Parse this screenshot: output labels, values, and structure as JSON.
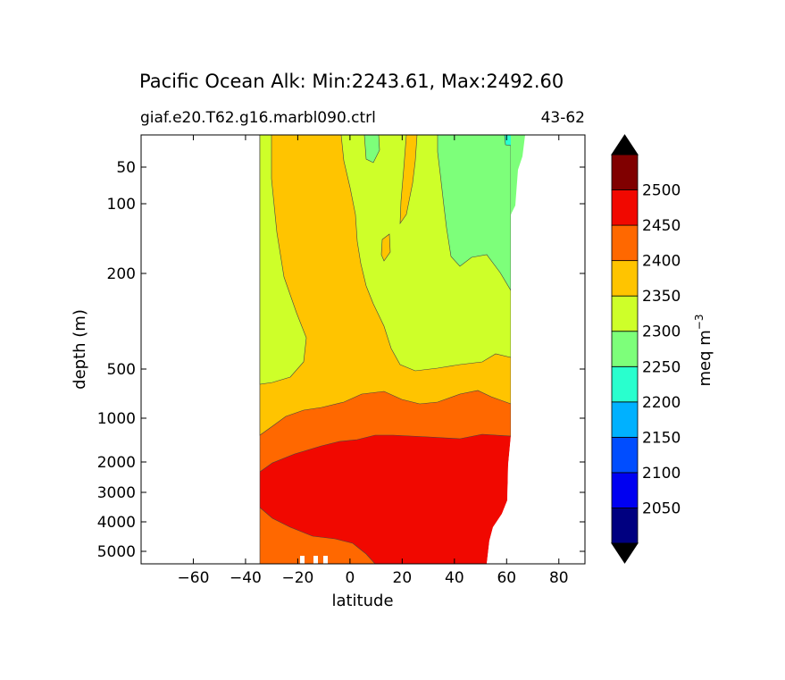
{
  "chart_data": {
    "type": "filled-contour",
    "title": "Pacific Ocean Alk: Min:2243.61, Max:2492.60",
    "subtitle_left": "giaf.e20.T62.g16.marbl090.ctrl",
    "subtitle_right": "43-62",
    "xlabel": "latitude",
    "ylabel": "depth (m)",
    "xlim": [
      -80,
      90
    ],
    "x_ticks": [
      -60,
      -40,
      -20,
      0,
      20,
      40,
      60,
      80
    ],
    "x_tick_labels": [
      "−60",
      "−40",
      "−20",
      "0",
      "20",
      "40",
      "60",
      "80"
    ],
    "y_scale": "custom-depth",
    "y_ticks": [
      50,
      100,
      200,
      500,
      1000,
      2000,
      3000,
      4000,
      5000
    ],
    "y_tick_labels": [
      "50",
      "100",
      "200",
      "500",
      "1000",
      "2000",
      "3000",
      "4000",
      "5000"
    ],
    "colorbar": {
      "label_base": "meq m",
      "label_exp": "−3",
      "extend": "both",
      "boundaries": [
        2000,
        2050,
        2100,
        2150,
        2200,
        2250,
        2300,
        2350,
        2400,
        2450,
        2500,
        2550
      ],
      "tick_values": [
        2050,
        2100,
        2150,
        2200,
        2250,
        2300,
        2350,
        2400,
        2450,
        2500
      ],
      "tick_labels": [
        "2050",
        "2100",
        "2150",
        "2200",
        "2250",
        "2300",
        "2350",
        "2400",
        "2450",
        "2500"
      ],
      "colors": [
        "#000080",
        "#0000f1",
        "#004dff",
        "#00b1ff",
        "#29ffce",
        "#7dff7a",
        "#ceff29",
        "#ffc400",
        "#ff6800",
        "#f10800",
        "#800000"
      ]
    },
    "levels": [
      {
        "band": "2250-2300",
        "color": "#7dff7a",
        "region": "northern upper ocean, about 35N to 62N, surface to about 200 m"
      },
      {
        "band": "2300-2350",
        "color": "#ceff29",
        "region": "southern and northern upper ocean, surface to about 500 m"
      },
      {
        "band": "2350-2400",
        "color": "#ffc400",
        "region": "mid-latitude upper ocean and thermocline, about 200 m to 1000 m"
      },
      {
        "band": "2400-2450",
        "color": "#ff6800",
        "region": "intermediate water about 800 m to 2000 m and southern abyss"
      },
      {
        "band": "2450-2500",
        "color": "#f10800",
        "region": "deep water below about 1500 m"
      }
    ]
  }
}
